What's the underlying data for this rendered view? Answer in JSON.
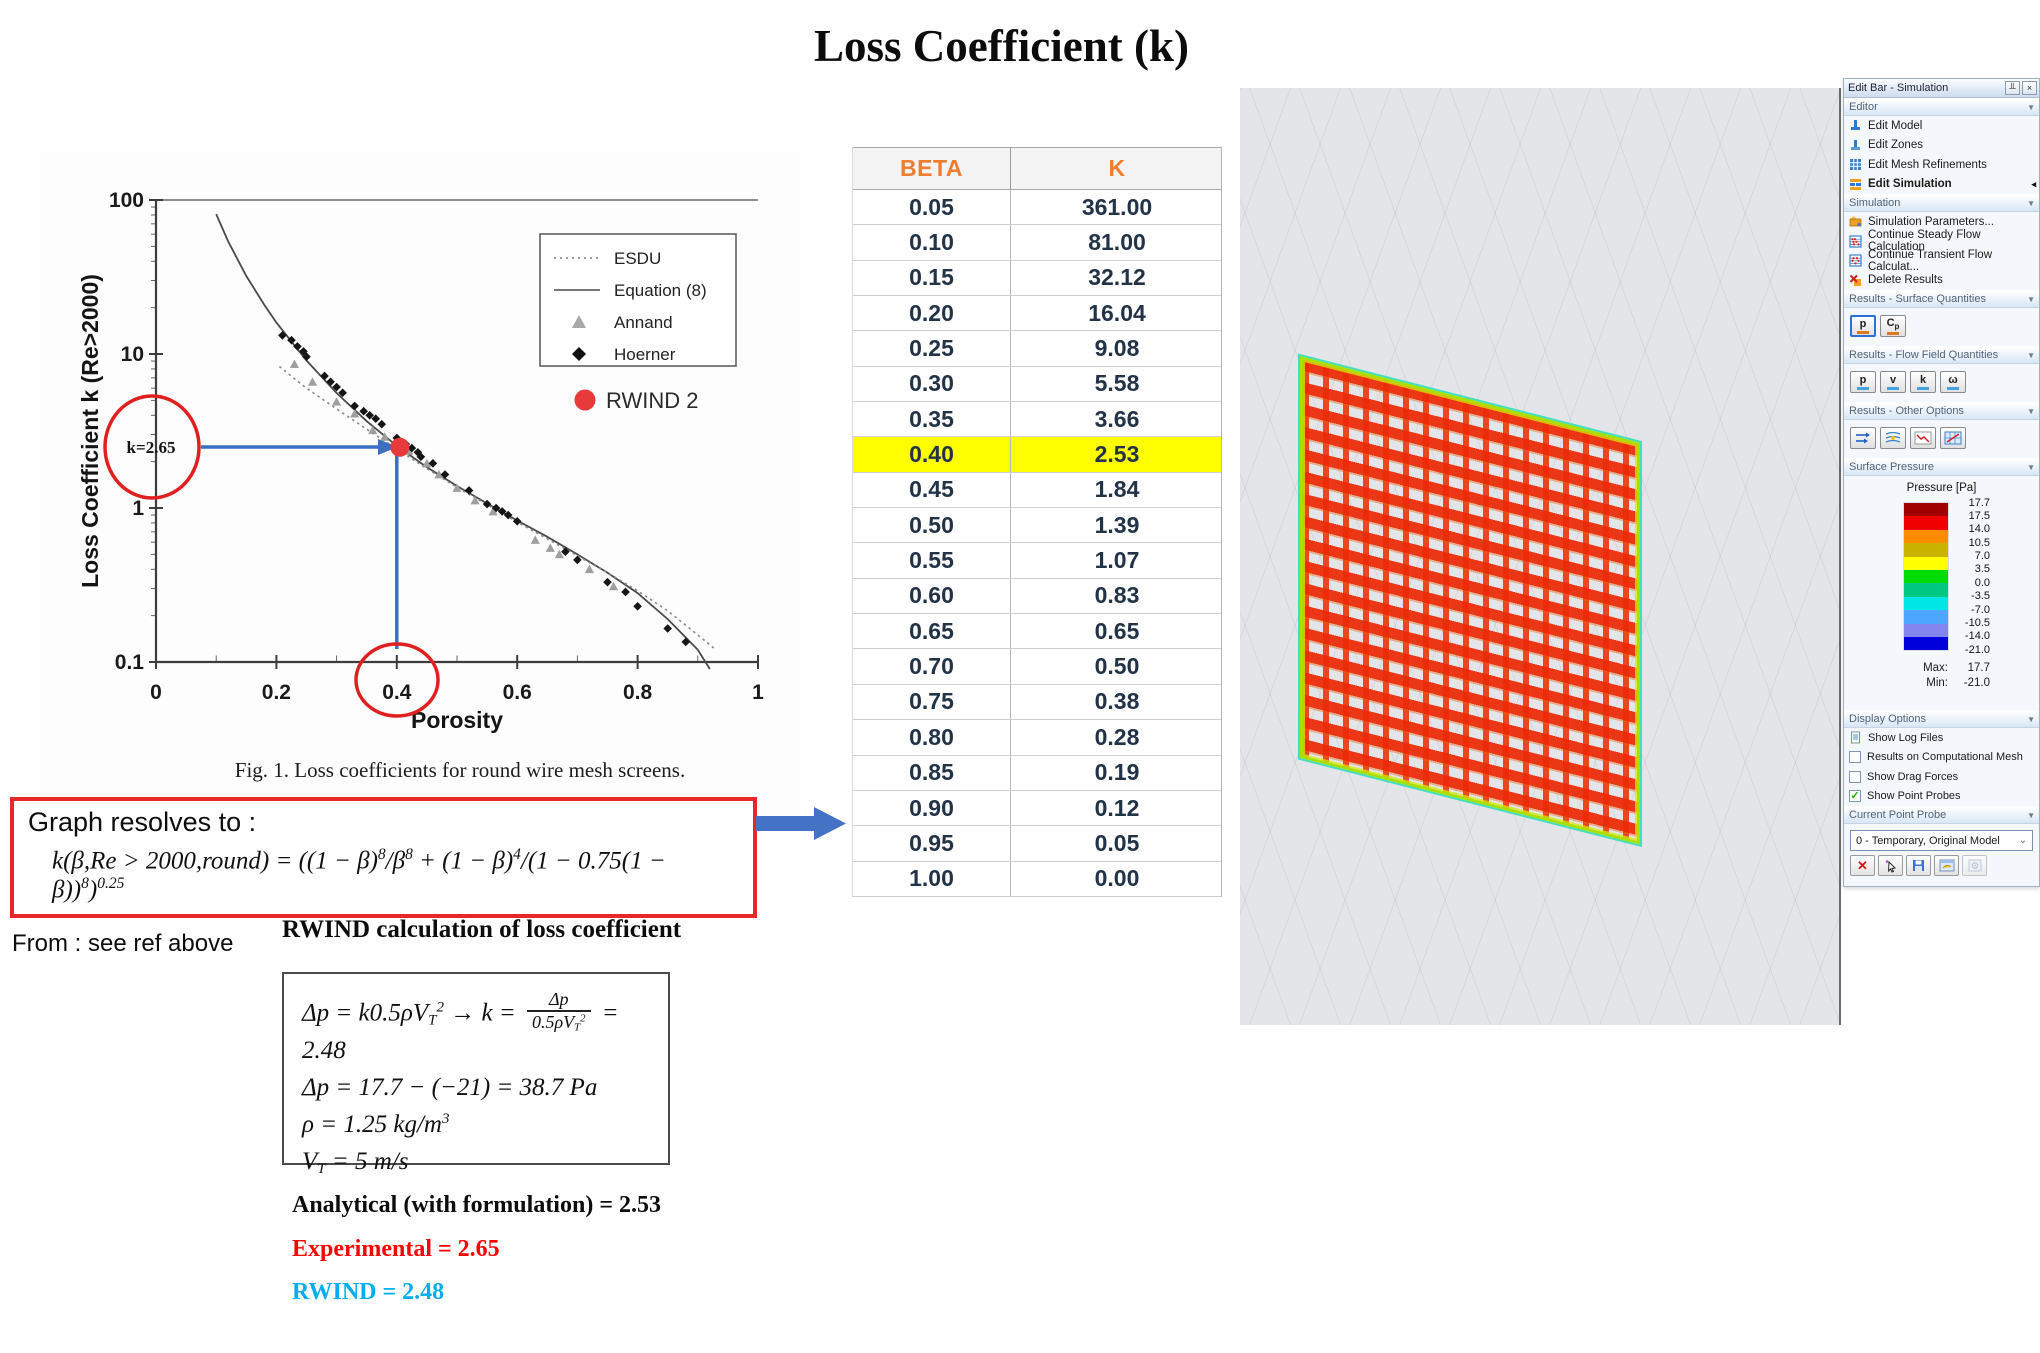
{
  "page": {
    "title": "Loss Coefficient (k)"
  },
  "colors": {
    "header_orange": "#ED7D31",
    "highlight_yellow": "#ffff00",
    "arrow_blue": "#4472c4",
    "annotation_red": "#e02020",
    "rwind_dot_red": "#e8393b",
    "experimental_red": "#ff0000",
    "rwind_cyan": "#00aeef",
    "mesh_red": "#ec2a06",
    "mesh_edge_green": "#aae000",
    "mesh_edge_cyan": "#40dfc0"
  },
  "figure": {
    "caption": "Fig. 1.  Loss coefficients for round wire mesh screens.",
    "y_axis_label": "Loss Coefficient k (Re>2000)",
    "x_axis_label": "Porosity",
    "y_ticks": [
      "100",
      "10",
      "1",
      "0.1"
    ],
    "x_ticks": [
      "0",
      "0.2",
      "0.4",
      "0.6",
      "0.8",
      "1"
    ],
    "legend": [
      "ESDU",
      "Equation (8)",
      "Annand",
      "Hoerner"
    ],
    "rwind_legend": "RWIND 2",
    "annotation_k": "k=2.65"
  },
  "chart_data": {
    "type": "scatter",
    "title": "Fig. 1. Loss coefficients for round wire mesh screens.",
    "xlabel": "Porosity",
    "ylabel": "Loss Coefficient k (Re>2000)",
    "xlim": [
      0,
      1
    ],
    "ylim": [
      0.1,
      100
    ],
    "y_scale": "log",
    "legend_position": "upper right",
    "series": [
      {
        "name": "Equation (8)",
        "type": "line",
        "points": [
          [
            0.1,
            81.0
          ],
          [
            0.12,
            53.8
          ],
          [
            0.15,
            32.1
          ],
          [
            0.18,
            20.8
          ],
          [
            0.2,
            16.0
          ],
          [
            0.25,
            9.08
          ],
          [
            0.3,
            5.58
          ],
          [
            0.35,
            3.66
          ],
          [
            0.4,
            2.53
          ],
          [
            0.45,
            1.84
          ],
          [
            0.5,
            1.39
          ],
          [
            0.55,
            1.07
          ],
          [
            0.6,
            0.83
          ],
          [
            0.65,
            0.65
          ],
          [
            0.7,
            0.5
          ],
          [
            0.75,
            0.38
          ],
          [
            0.8,
            0.28
          ],
          [
            0.85,
            0.19
          ],
          [
            0.9,
            0.12
          ],
          [
            0.92,
            0.09
          ]
        ]
      },
      {
        "name": "ESDU",
        "type": "dashed-line",
        "points": [
          [
            0.205,
            8.3
          ],
          [
            0.25,
            6.0
          ],
          [
            0.3,
            4.4
          ],
          [
            0.35,
            3.25
          ],
          [
            0.4,
            2.42
          ],
          [
            0.45,
            1.8
          ],
          [
            0.5,
            1.36
          ],
          [
            0.55,
            1.05
          ],
          [
            0.6,
            0.81
          ],
          [
            0.65,
            0.63
          ],
          [
            0.7,
            0.49
          ],
          [
            0.75,
            0.38
          ],
          [
            0.8,
            0.29
          ],
          [
            0.85,
            0.215
          ],
          [
            0.9,
            0.15
          ],
          [
            0.93,
            0.12
          ]
        ]
      },
      {
        "name": "Annand",
        "type": "scatter-triangle",
        "points": [
          [
            0.23,
            8.6
          ],
          [
            0.26,
            6.6
          ],
          [
            0.3,
            4.9
          ],
          [
            0.33,
            4.1
          ],
          [
            0.36,
            3.2
          ],
          [
            0.38,
            2.9
          ],
          [
            0.42,
            2.35
          ],
          [
            0.45,
            1.95
          ],
          [
            0.47,
            1.65
          ],
          [
            0.5,
            1.35
          ],
          [
            0.53,
            1.12
          ],
          [
            0.56,
            0.95
          ],
          [
            0.63,
            0.62
          ],
          [
            0.655,
            0.55
          ],
          [
            0.67,
            0.5
          ],
          [
            0.72,
            0.4
          ],
          [
            0.76,
            0.31
          ]
        ]
      },
      {
        "name": "Hoerner",
        "type": "scatter-diamond",
        "points": [
          [
            0.21,
            13.2
          ],
          [
            0.225,
            12.3
          ],
          [
            0.235,
            11.2
          ],
          [
            0.245,
            10.4
          ],
          [
            0.25,
            9.6
          ],
          [
            0.28,
            7.2
          ],
          [
            0.29,
            6.6
          ],
          [
            0.3,
            6.1
          ],
          [
            0.31,
            5.6
          ],
          [
            0.33,
            4.6
          ],
          [
            0.345,
            4.25
          ],
          [
            0.355,
            4.0
          ],
          [
            0.365,
            3.8
          ],
          [
            0.375,
            3.5
          ],
          [
            0.4,
            2.85
          ],
          [
            0.415,
            2.6
          ],
          [
            0.425,
            2.45
          ],
          [
            0.435,
            2.3
          ],
          [
            0.44,
            2.15
          ],
          [
            0.46,
            1.95
          ],
          [
            0.48,
            1.65
          ],
          [
            0.52,
            1.3
          ],
          [
            0.55,
            1.06
          ],
          [
            0.565,
            1.0
          ],
          [
            0.575,
            0.95
          ],
          [
            0.585,
            0.9
          ],
          [
            0.6,
            0.82
          ],
          [
            0.68,
            0.52
          ],
          [
            0.7,
            0.46
          ],
          [
            0.75,
            0.33
          ],
          [
            0.78,
            0.285
          ],
          [
            0.8,
            0.23
          ],
          [
            0.85,
            0.165
          ],
          [
            0.88,
            0.135
          ]
        ]
      },
      {
        "name": "RWIND 2",
        "type": "scatter-dot",
        "color": "#e8393b",
        "points": [
          [
            0.405,
            2.48
          ]
        ]
      }
    ],
    "annotations": [
      {
        "text": "k=2.65",
        "target_k": 2.65
      },
      {
        "text": "porosity 0.4 circled on x-axis"
      }
    ]
  },
  "resolves": {
    "heading": "Graph resolves to :",
    "formula": [
      {
        "t": "k(β,Re > 2000,round) = ((1 − β)"
      },
      {
        "sup": "8"
      },
      {
        "t": "/β"
      },
      {
        "sup": "8"
      },
      {
        "t": " + (1 − β)"
      },
      {
        "sup": "4"
      },
      {
        "t": "/(1 − 0.75(1 − β))"
      },
      {
        "sup": "8"
      },
      {
        "t": ")"
      },
      {
        "sup": "0.25"
      }
    ],
    "from_note": "From : see ref above"
  },
  "table": {
    "headers": [
      "BETA",
      "K"
    ],
    "rows": [
      [
        "0.05",
        "361.00"
      ],
      [
        "0.10",
        "81.00"
      ],
      [
        "0.15",
        "32.12"
      ],
      [
        "0.20",
        "16.04"
      ],
      [
        "0.25",
        "9.08"
      ],
      [
        "0.30",
        "5.58"
      ],
      [
        "0.35",
        "3.66"
      ],
      [
        "0.40",
        "2.53"
      ],
      [
        "0.45",
        "1.84"
      ],
      [
        "0.50",
        "1.39"
      ],
      [
        "0.55",
        "1.07"
      ],
      [
        "0.60",
        "0.83"
      ],
      [
        "0.65",
        "0.65"
      ],
      [
        "0.70",
        "0.50"
      ],
      [
        "0.75",
        "0.38"
      ],
      [
        "0.80",
        "0.28"
      ],
      [
        "0.85",
        "0.19"
      ],
      [
        "0.90",
        "0.12"
      ],
      [
        "0.95",
        "0.05"
      ],
      [
        "1.00",
        "0.00"
      ]
    ],
    "highlight_row_index": 7
  },
  "calc": {
    "heading": "RWIND calculation of loss coefficient",
    "lines": [
      [
        {
          "t": "Δp = k0.5ρV"
        },
        {
          "sub": "T"
        },
        {
          "sup": "2"
        },
        {
          "t": " → k = "
        },
        {
          "frac": {
            "n": [
              {
                "t": "Δp"
              }
            ],
            "d": [
              {
                "t": "0.5ρV"
              },
              {
                "sub": "T"
              },
              {
                "sup": "2"
              }
            ]
          }
        },
        {
          "t": " = 2.48"
        }
      ],
      [
        {
          "t": "Δp = 17.7 − (−21) = 38.7 Pa"
        }
      ],
      [
        {
          "t": "ρ = 1.25 kg/m"
        },
        {
          "sup": "3"
        }
      ],
      [
        {
          "t": "V"
        },
        {
          "sub": "T"
        },
        {
          "t": " = 5 m/s"
        }
      ]
    ],
    "results": [
      {
        "text": "Analytical (with formulation) = 2.53",
        "color": "#0c0c0c"
      },
      {
        "text": "Experimental = 2.65",
        "color": "#ff0000"
      },
      {
        "text": "RWIND = 2.48",
        "color": "#00aeef"
      }
    ]
  },
  "sidebar": {
    "title": "Edit Bar - Simulation",
    "pin_button": "╨",
    "close_button": "×",
    "chevron": "▼",
    "editor": {
      "label": "Editor",
      "items": [
        {
          "label": "Edit Model",
          "icon": "edit-model-icon"
        },
        {
          "label": "Edit Zones",
          "icon": "edit-zones-icon"
        },
        {
          "label": "Edit Mesh Refinements",
          "icon": "edit-mesh-refinements-icon"
        },
        {
          "label": "Edit Simulation",
          "icon": "edit-simulation-icon",
          "bold": true,
          "end_arrow": "◂"
        }
      ]
    },
    "simulation": {
      "label": "Simulation",
      "items": [
        {
          "label": "Simulation Parameters...",
          "icon": "simulation-parameters-icon"
        },
        {
          "label": "Continue Steady Flow Calculation",
          "icon": "continue-steady-icon"
        },
        {
          "label": "Continue Transient Flow Calculat...",
          "icon": "continue-transient-icon"
        },
        {
          "label": "Delete Results",
          "icon": "delete-results-icon"
        }
      ]
    },
    "surface_quantities": {
      "label": "Results - Surface Quantities",
      "buttons": [
        "p",
        "Cp"
      ],
      "selected": "p"
    },
    "flow_quantities": {
      "label": "Results - Flow Field Quantities",
      "buttons": [
        "p",
        "v",
        "k",
        "ω"
      ]
    },
    "other_options": {
      "label": "Results - Other Options",
      "buttons": [
        "flow-lines-icon",
        "streamlines-icon",
        "point-graph-icon",
        "result-diagram-icon"
      ]
    },
    "surface_pressure": {
      "label": "Surface Pressure",
      "unit_label": "Pressure [Pa]",
      "band_colors": [
        "#a00000",
        "#f00000",
        "#ff8c00",
        "#c8b400",
        "#ffff00",
        "#00dc00",
        "#00c882",
        "#00e6e6",
        "#4da6ff",
        "#8585ef",
        "#0000dc"
      ],
      "band_values": [
        "17.7",
        "17.5",
        "14.0",
        "10.5",
        "7.0",
        "3.5",
        "0.0",
        "-3.5",
        "-7.0",
        "-10.5",
        "-14.0",
        "-21.0"
      ],
      "max_label": "Max:",
      "max_value": "17.7",
      "min_label": "Min:",
      "min_value": "-21.0"
    },
    "display_options": {
      "label": "Display Options",
      "items": [
        {
          "label": "Show Log Files",
          "type": "doc-icon"
        },
        {
          "label": "Results on Computational Mesh",
          "checked": false
        },
        {
          "label": "Show Drag Forces",
          "checked": false
        },
        {
          "label": "Show Point Probes",
          "checked": true,
          "check_glyph": "✓"
        }
      ]
    },
    "point_probe": {
      "label": "Current Point Probe",
      "dropdown_value": "0 - Temporary, Original Model",
      "delete_glyph": "✕"
    }
  }
}
